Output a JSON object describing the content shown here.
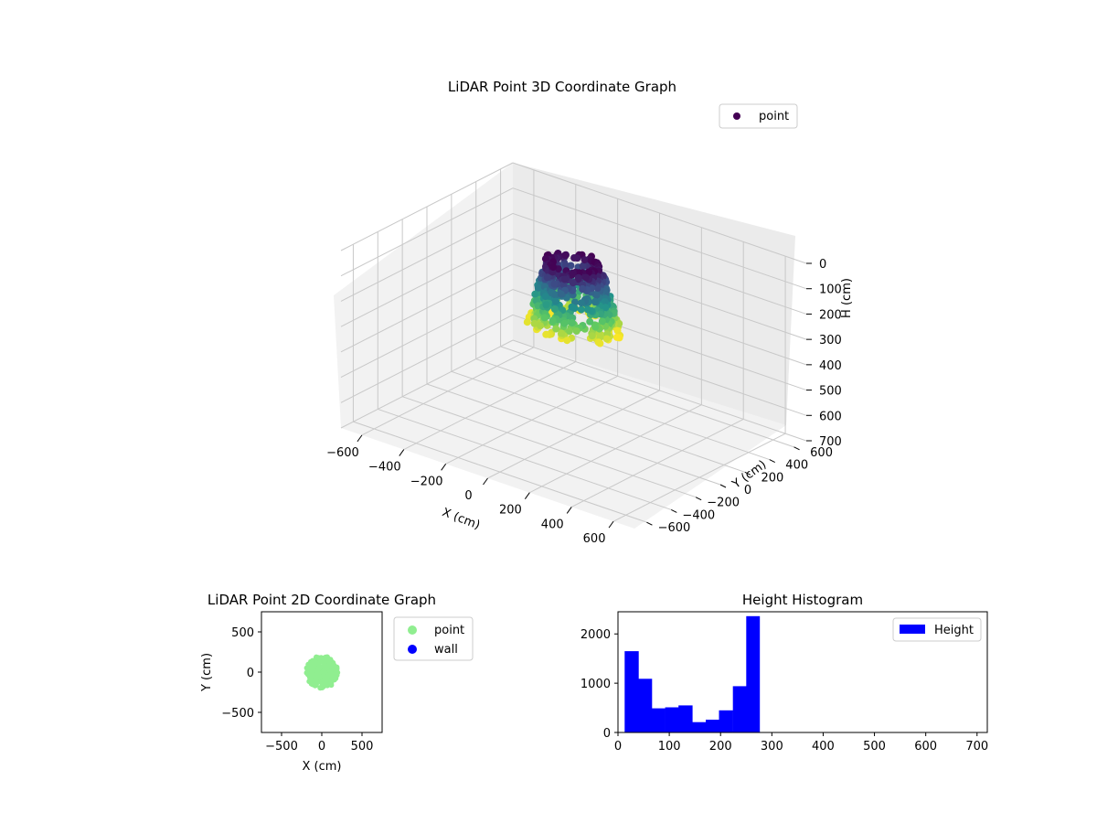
{
  "chart_data": [
    {
      "type": "scatter",
      "subtype": "3d",
      "title": "LiDAR Point 3D Coordinate Graph",
      "xlabel": "X (cm)",
      "ylabel": "Y (cm)",
      "zlabel": "H (cm)",
      "xlim": [
        -700,
        700
      ],
      "ylim": [
        -700,
        700
      ],
      "zlim": [
        0,
        700
      ],
      "z_inverted": true,
      "xticks": [
        "−600",
        "−400",
        "−200",
        "0",
        "200",
        "400",
        "600"
      ],
      "yticks": [
        "−600",
        "−400",
        "−200",
        "0",
        "200",
        "400",
        "600"
      ],
      "zticks": [
        "0",
        "100",
        "200",
        "300",
        "400",
        "500",
        "600",
        "700"
      ],
      "grid": true,
      "colormap": "viridis",
      "legend": {
        "placement": "top-right",
        "entries": [
          {
            "label": "point",
            "color": "#440154"
          }
        ]
      },
      "cluster": {
        "center_x": 0,
        "center_y": 0,
        "radius": 200,
        "h_min": 20,
        "h_max": 280
      }
    },
    {
      "type": "scatter",
      "title": "LiDAR Point 2D Coordinate Graph",
      "xlabel": "X (cm)",
      "ylabel": "Y (cm)",
      "xlim": [
        -750,
        750
      ],
      "ylim": [
        -750,
        750
      ],
      "xticks": [
        "−500",
        "0",
        "500"
      ],
      "yticks": [
        "−500",
        "0",
        "500"
      ],
      "grid": false,
      "legend": {
        "placement": "outside-right",
        "entries": [
          {
            "label": "point",
            "color": "#90ee90"
          },
          {
            "label": "wall",
            "color": "#0000ff"
          }
        ]
      },
      "cluster": {
        "center_x": 0,
        "center_y": 0,
        "radius": 200,
        "color": "#90ee90"
      }
    },
    {
      "type": "bar",
      "subtype": "histogram",
      "title": "Height Histogram",
      "xlim": [
        0,
        720
      ],
      "ylim": [
        0,
        2450
      ],
      "xticks": [
        "0",
        "100",
        "200",
        "300",
        "400",
        "500",
        "600",
        "700"
      ],
      "yticks": [
        "0",
        "1000",
        "2000"
      ],
      "bin_edges": [
        13,
        40,
        66,
        92,
        118,
        145,
        171,
        197,
        224,
        250,
        276
      ],
      "values": [
        1650,
        1090,
        490,
        510,
        550,
        210,
        260,
        450,
        940,
        2360
      ],
      "color": "#0000ff",
      "legend": {
        "placement": "top-right",
        "entries": [
          {
            "label": "Height",
            "color": "#0000ff"
          }
        ]
      }
    }
  ]
}
